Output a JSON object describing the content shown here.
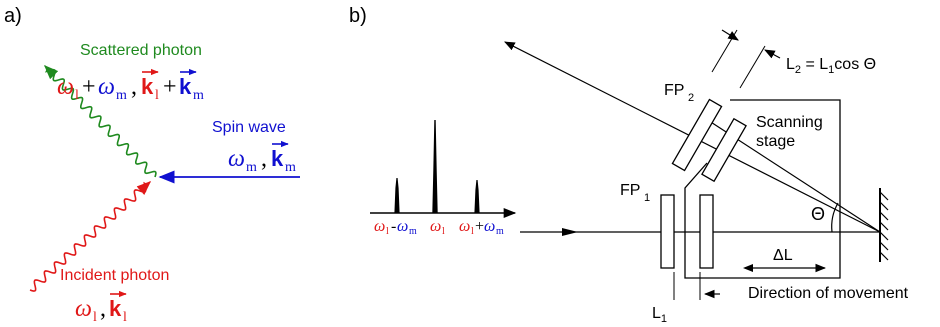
{
  "colors": {
    "scattered": "#1f8a1f",
    "incident": "#e01818",
    "spin": "#1010d0",
    "ink": "#000000",
    "red_text": "#e01818",
    "blue_text": "#1010d0"
  },
  "panel_a": {
    "label": "a)",
    "scattered_photon": "Scattered  photon",
    "spin_wave": "Spin wave",
    "incident_photon": "Incident  photon",
    "scattered_formula": {
      "omega": "ω",
      "sub_l": "l",
      "plus": "+",
      "sub_m": "m",
      "comma": ",",
      "k": "k"
    },
    "spin_formula": {
      "omega": "ω",
      "sub_m": "m",
      "comma": ",",
      "k": "k"
    },
    "incident_formula": {
      "omega": "ω",
      "sub_l": "l",
      "comma": ",",
      "k": "k"
    }
  },
  "panel_b": {
    "label": "b)",
    "l2_eq": "L",
    "l2_sub": "2",
    "l2_rhs": " = L",
    "l2_sub1": "1",
    "l2_tail": "cos Θ",
    "fp2": "FP",
    "fp2_sub": "2",
    "fp1": "FP",
    "fp1_sub": "1",
    "scanning": "Scanning",
    "stage": "stage",
    "theta": "Θ",
    "delta_l": "ΔL",
    "direction": "Direction of movement",
    "l1": "L",
    "l1_sub": "1",
    "spectrum": {
      "left_omega": "ω",
      "left_sub_l": "l",
      "left_dash": "-",
      "left_omega2": "ω",
      "left_sub_m": "m",
      "mid_omega": "ω",
      "mid_sub_l": "l",
      "right_omega": "ω",
      "right_sub_l": "l",
      "right_plus": "+",
      "right_omega2": "ω",
      "right_sub_m": "m"
    }
  }
}
